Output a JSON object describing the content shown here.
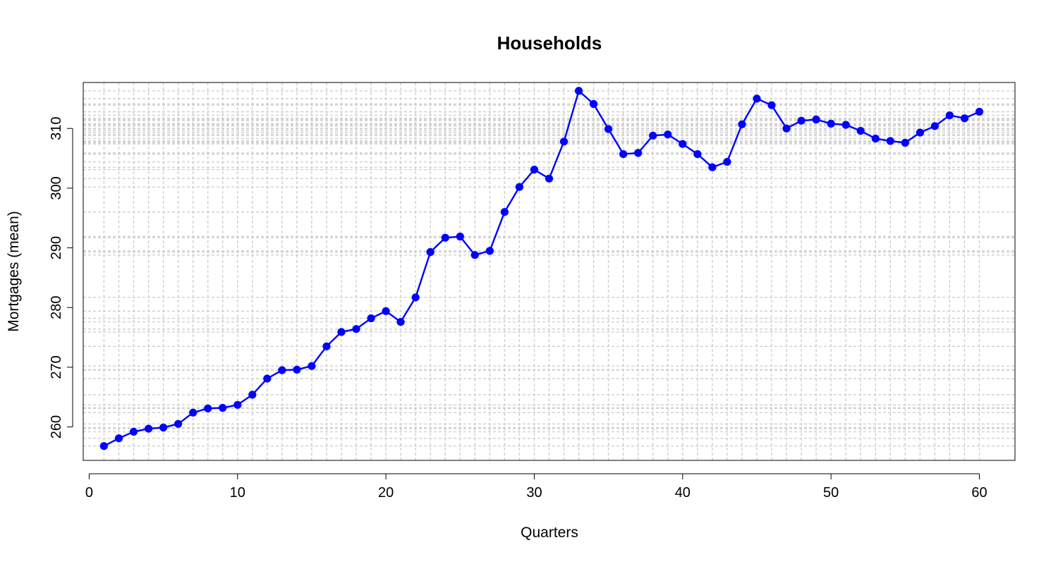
{
  "chart_data": {
    "type": "line",
    "title": "Households",
    "xlabel": "Quarters",
    "ylabel": "Mortgages (mean)",
    "xlim": [
      -0.4,
      62.4
    ],
    "ylim": [
      254.4,
      317.7
    ],
    "x_ticks": [
      0,
      10,
      20,
      30,
      40,
      50,
      60
    ],
    "y_ticks": [
      260,
      270,
      280,
      290,
      300,
      310
    ],
    "grid": true,
    "line_color": "#0000ff",
    "grid_color": "#cfcfcf",
    "x": [
      1,
      2,
      3,
      4,
      5,
      6,
      7,
      8,
      9,
      10,
      11,
      12,
      13,
      14,
      15,
      16,
      17,
      18,
      19,
      20,
      21,
      22,
      23,
      24,
      25,
      26,
      27,
      28,
      29,
      30,
      31,
      32,
      33,
      34,
      35,
      36,
      37,
      38,
      39,
      40,
      41,
      42,
      43,
      44,
      45,
      46,
      47,
      48,
      49,
      50,
      51,
      52,
      53,
      54,
      55,
      56,
      57,
      58,
      59,
      60
    ],
    "series": [
      {
        "values": [
          256.8,
          258.1,
          259.2,
          259.7,
          259.9,
          260.5,
          262.4,
          263.1,
          263.2,
          263.7,
          265.4,
          268.1,
          269.5,
          269.6,
          270.2,
          273.5,
          275.9,
          276.4,
          278.2,
          279.4,
          277.6,
          281.7,
          289.3,
          291.7,
          291.9,
          288.8,
          289.5,
          296.0,
          300.2,
          303.1,
          301.6,
          307.8,
          316.3,
          314.1,
          309.9,
          305.7,
          305.9,
          308.8,
          309.0,
          307.4,
          305.7,
          303.5,
          304.4,
          310.7,
          315.0,
          313.9,
          310.0,
          311.3,
          311.5,
          310.8,
          310.6,
          309.6,
          308.3,
          307.9,
          307.6,
          309.3,
          310.4,
          312.2,
          311.7,
          312.8
        ]
      }
    ]
  }
}
